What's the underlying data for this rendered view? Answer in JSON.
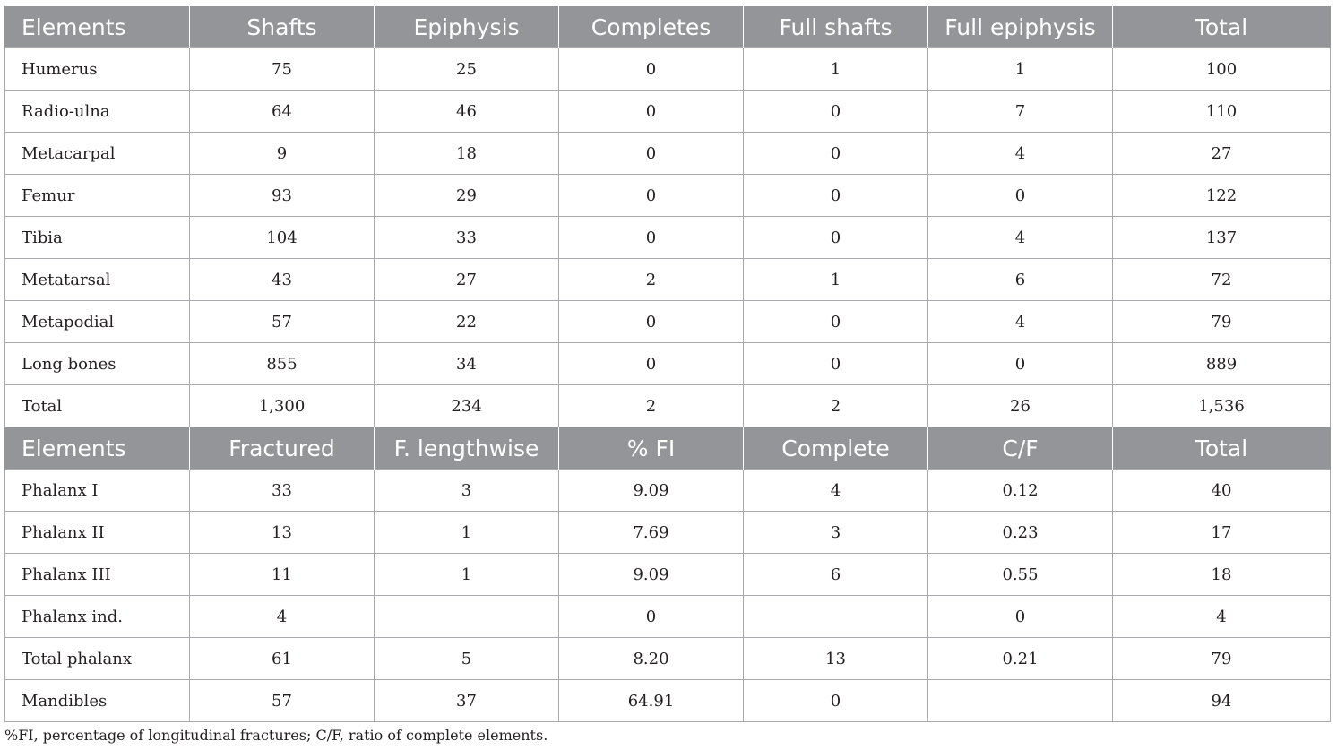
{
  "table1": {
    "headers": [
      "Elements",
      "Shafts",
      "Epiphysis",
      "Completes",
      "Full shafts",
      "Full epiphysis",
      "Total"
    ],
    "rows": [
      [
        "Humerus",
        "75",
        "25",
        "0",
        "1",
        "1",
        "100"
      ],
      [
        "Radio-ulna",
        "64",
        "46",
        "0",
        "0",
        "7",
        "110"
      ],
      [
        "Metacarpal",
        "9",
        "18",
        "0",
        "0",
        "4",
        "27"
      ],
      [
        "Femur",
        "93",
        "29",
        "0",
        "0",
        "0",
        "122"
      ],
      [
        "Tibia",
        "104",
        "33",
        "0",
        "0",
        "4",
        "137"
      ],
      [
        "Metatarsal",
        "43",
        "27",
        "2",
        "1",
        "6",
        "72"
      ],
      [
        "Metapodial",
        "57",
        "22",
        "0",
        "0",
        "4",
        "79"
      ],
      [
        "Long bones",
        "855",
        "34",
        "0",
        "0",
        "0",
        "889"
      ],
      [
        "Total",
        "1,300",
        "234",
        "2",
        "2",
        "26",
        "1,536"
      ]
    ]
  },
  "table2": {
    "headers": [
      "Elements",
      "Fractured",
      "F. lengthwise",
      "% FI",
      "Complete",
      "C/F",
      "Total"
    ],
    "rows": [
      [
        "Phalanx I",
        "33",
        "3",
        "9.09",
        "4",
        "0.12",
        "40"
      ],
      [
        "Phalanx II",
        "13",
        "1",
        "7.69",
        "3",
        "0.23",
        "17"
      ],
      [
        "Phalanx III",
        "11",
        "1",
        "9.09",
        "6",
        "0.55",
        "18"
      ],
      [
        "Phalanx ind.",
        "4",
        "",
        "0",
        "",
        "0",
        "4"
      ],
      [
        "Total phalanx",
        "61",
        "5",
        "8.20",
        "13",
        "0.21",
        "79"
      ],
      [
        "Mandibles",
        "57",
        "37",
        "64.91",
        "0",
        "",
        "94"
      ]
    ]
  },
  "footnote": "%FI, percentage of longitudinal fractures; C/F, ratio of complete elements.",
  "colors": {
    "header_bg": "#939598",
    "header_text": "#ffffff",
    "border": "#a7a9ac",
    "body_text": "#231f20"
  }
}
